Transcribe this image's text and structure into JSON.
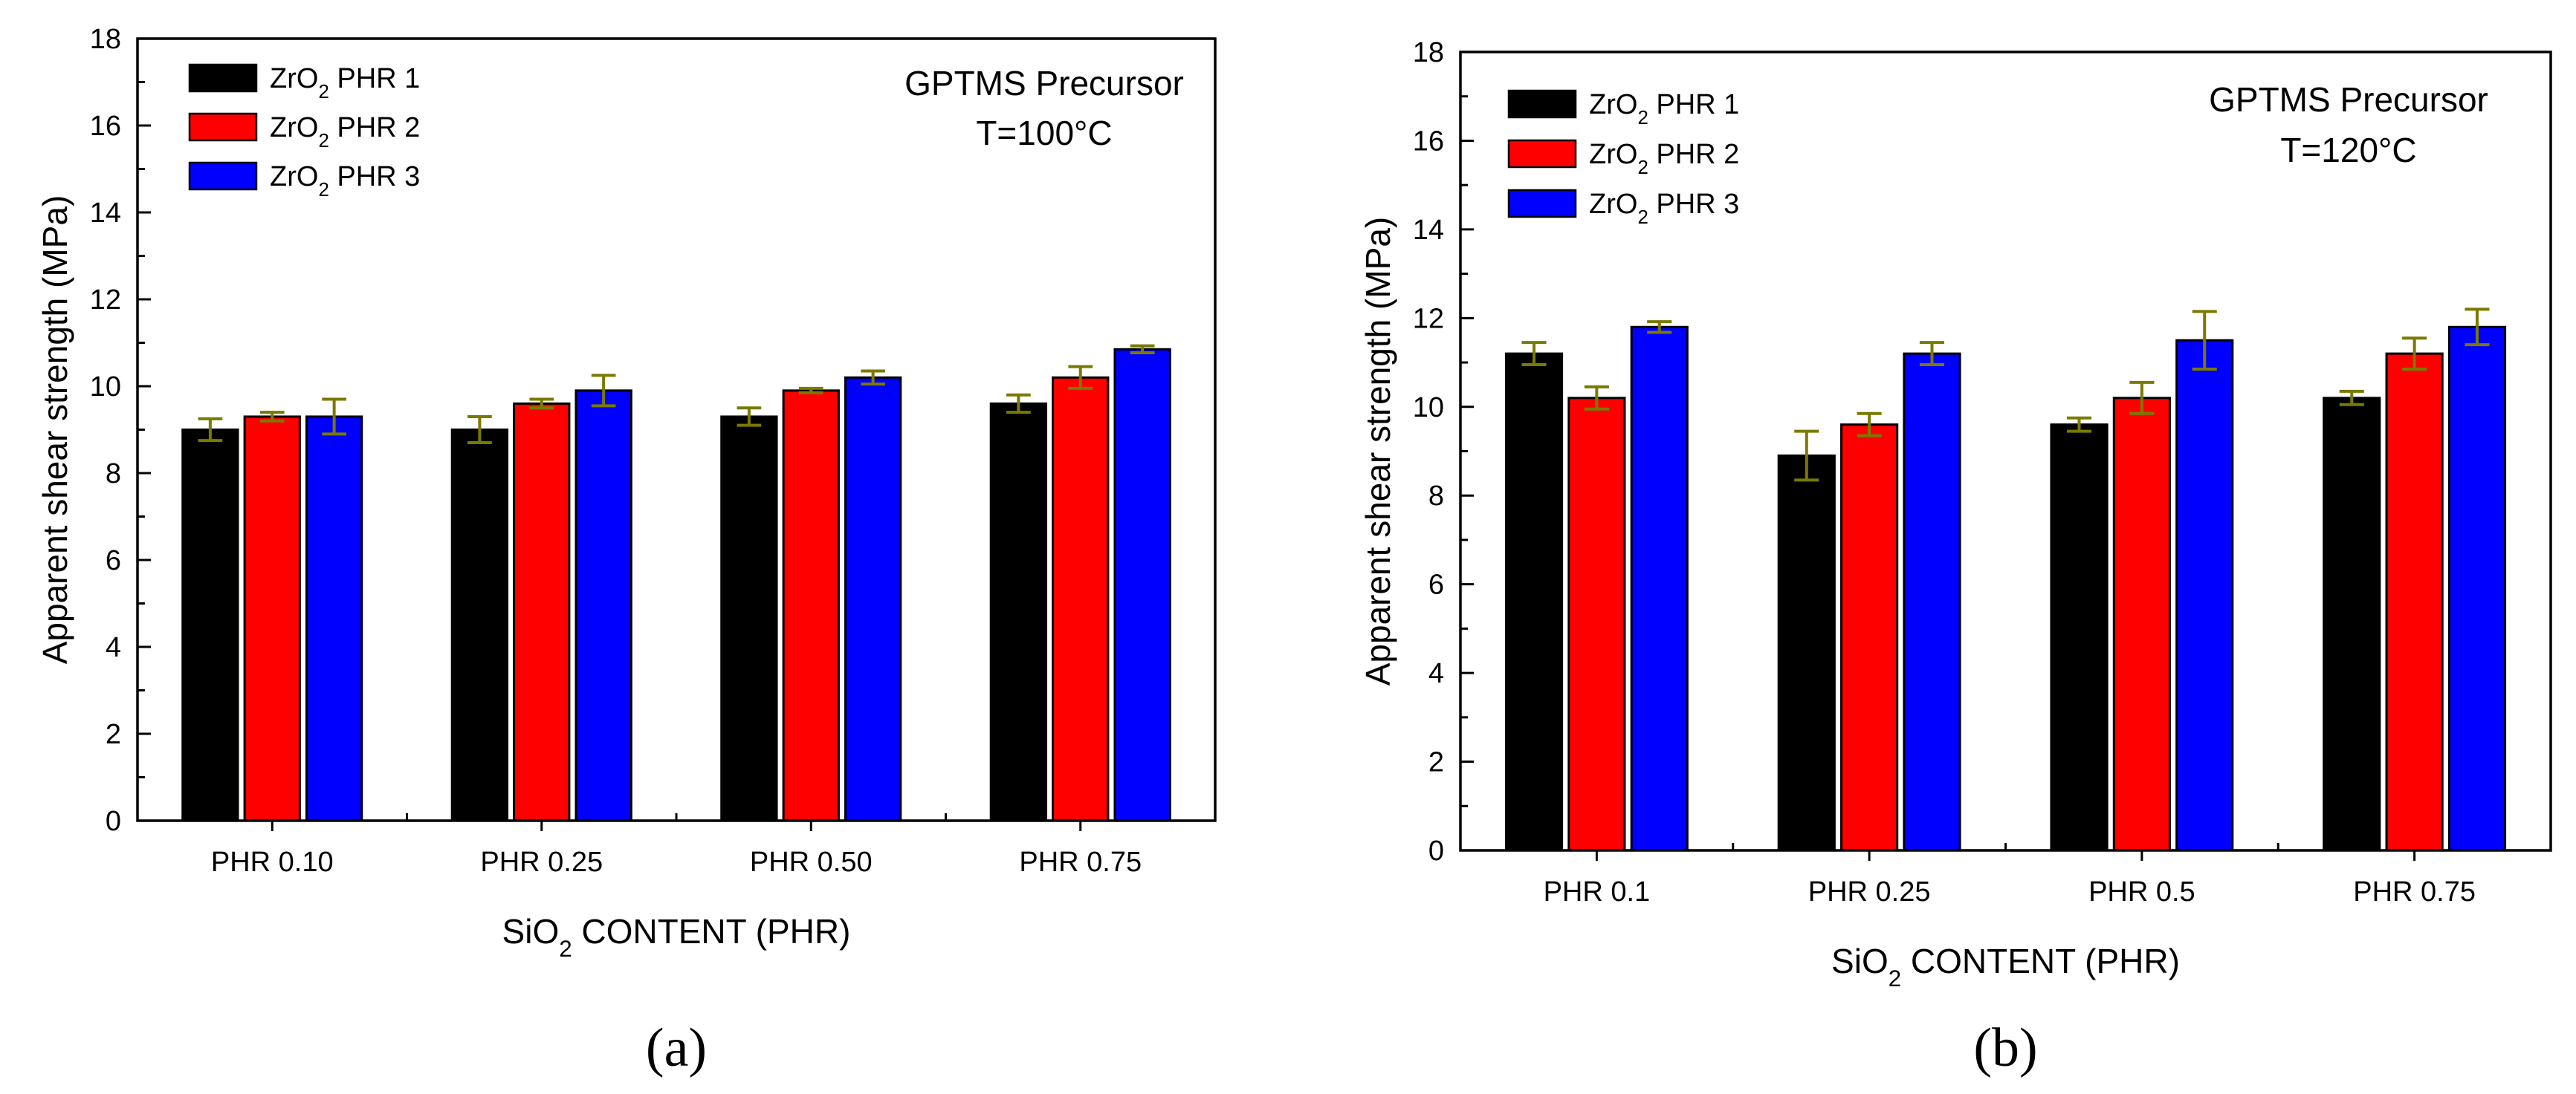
{
  "colors": {
    "ZrO2 PHR 1": "#000000",
    "ZrO2 PHR 2": "#ff0000",
    "ZrO2 PHR 3": "#0000ff",
    "error_bar": "#7a7a00"
  },
  "chart_data": [
    {
      "type": "bar",
      "panel_label": "(a)",
      "title": "",
      "annotation": [
        "GPTMS Precursor",
        "T=100°C"
      ],
      "xlabel": "SiO2 CONTENT (PHR)",
      "ylabel": "Apparent shear strength (MPa)",
      "ylim": [
        0,
        18
      ],
      "yticks": [
        "0",
        "2",
        "4",
        "6",
        "8",
        "10",
        "12",
        "14",
        "16",
        "18"
      ],
      "categories": [
        "PHR 0.10",
        "PHR 0.25",
        "PHR 0.50",
        "PHR 0.75"
      ],
      "legend_position": "top-left",
      "series": [
        {
          "name": "ZrO2 PHR 1",
          "values": [
            9.0,
            9.0,
            9.3,
            9.6
          ],
          "errors": [
            0.25,
            0.3,
            0.2,
            0.2
          ]
        },
        {
          "name": "ZrO2 PHR 2",
          "values": [
            9.3,
            9.6,
            9.9,
            10.2
          ],
          "errors": [
            0.1,
            0.1,
            0.05,
            0.25
          ]
        },
        {
          "name": "ZrO2 PHR 3",
          "values": [
            9.3,
            9.9,
            10.2,
            10.85
          ],
          "errors": [
            0.4,
            0.35,
            0.15,
            0.08
          ]
        }
      ]
    },
    {
      "type": "bar",
      "panel_label": "(b)",
      "title": "",
      "annotation": [
        "GPTMS Precursor",
        "T=120°C"
      ],
      "xlabel": "SiO2 CONTENT (PHR)",
      "ylabel": "Apparent shear strength (MPa)",
      "ylim": [
        0,
        18
      ],
      "yticks": [
        "0",
        "2",
        "4",
        "6",
        "8",
        "10",
        "12",
        "14",
        "16",
        "18"
      ],
      "categories": [
        "PHR 0.1",
        "PHR 0.25",
        "PHR 0.5",
        "PHR 0.75"
      ],
      "legend_position": "top-left",
      "series": [
        {
          "name": "ZrO2 PHR 1",
          "values": [
            11.2,
            8.9,
            9.6,
            10.2
          ],
          "errors": [
            0.25,
            0.55,
            0.15,
            0.15
          ]
        },
        {
          "name": "ZrO2 PHR 2",
          "values": [
            10.2,
            9.6,
            10.2,
            11.2
          ],
          "errors": [
            0.25,
            0.25,
            0.35,
            0.35
          ]
        },
        {
          "name": "ZrO2 PHR 3",
          "values": [
            11.8,
            11.2,
            11.5,
            11.8
          ],
          "errors": [
            0.12,
            0.25,
            0.65,
            0.4
          ]
        }
      ]
    }
  ]
}
